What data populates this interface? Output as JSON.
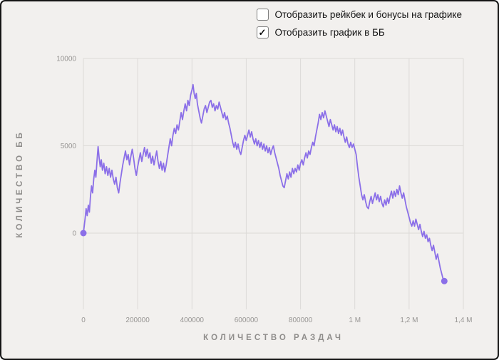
{
  "controls": {
    "rakeback_checkbox": {
      "label": "Отобразить рейкбек и бонусы на графике",
      "checked": false
    },
    "bb_checkbox": {
      "label": "Отобразить график в ББ",
      "checked": true
    }
  },
  "icons": {
    "checkmark": "✓"
  },
  "colors": {
    "accent_line": "#8b6fe8",
    "background": "#f2f0ee",
    "grid": "#dcdad7"
  },
  "chart_data": {
    "type": "line",
    "title": "",
    "xlabel": "КОЛИЧЕСТВО РАЗДАЧ",
    "ylabel": "КОЛИЧЕСТВО ББ",
    "xlim": [
      0,
      1400000
    ],
    "ylim": [
      -4370,
      10000
    ],
    "x_ticks": [
      0,
      200000,
      400000,
      600000,
      800000,
      1000000,
      1200000,
      1400000
    ],
    "x_tick_labels": [
      "0",
      "200000",
      "400000",
      "600000",
      "800000",
      "1 M",
      "1,2 M",
      "1,4 M"
    ],
    "y_ticks": [
      0,
      5000,
      10000
    ],
    "y_tick_labels": [
      "0",
      "5000",
      "10000"
    ],
    "grid": true,
    "legend": false,
    "line_color": "#8b6fe8",
    "series": [
      {
        "name": "Количество ББ",
        "points": [
          [
            0,
            0
          ],
          [
            6000,
            800
          ],
          [
            10000,
            1400
          ],
          [
            14000,
            1000
          ],
          [
            18000,
            1600
          ],
          [
            22000,
            1200
          ],
          [
            26000,
            2100
          ],
          [
            30000,
            2700
          ],
          [
            34000,
            2300
          ],
          [
            38000,
            3100
          ],
          [
            42000,
            3600
          ],
          [
            46000,
            3200
          ],
          [
            50000,
            4100
          ],
          [
            54000,
            4950
          ],
          [
            58000,
            4300
          ],
          [
            62000,
            3800
          ],
          [
            66000,
            4200
          ],
          [
            70000,
            3600
          ],
          [
            75000,
            4000
          ],
          [
            80000,
            3400
          ],
          [
            85000,
            3800
          ],
          [
            90000,
            3300
          ],
          [
            95000,
            3700
          ],
          [
            100000,
            3200
          ],
          [
            105000,
            3600
          ],
          [
            110000,
            3100
          ],
          [
            115000,
            2800
          ],
          [
            120000,
            3200
          ],
          [
            125000,
            2600
          ],
          [
            130000,
            2300
          ],
          [
            135000,
            2900
          ],
          [
            140000,
            3400
          ],
          [
            145000,
            3900
          ],
          [
            150000,
            4300
          ],
          [
            155000,
            4700
          ],
          [
            160000,
            4200
          ],
          [
            165000,
            4500
          ],
          [
            170000,
            3900
          ],
          [
            175000,
            4400
          ],
          [
            180000,
            4800
          ],
          [
            185000,
            4300
          ],
          [
            190000,
            3700
          ],
          [
            195000,
            3300
          ],
          [
            200000,
            3800
          ],
          [
            205000,
            4200
          ],
          [
            210000,
            4600
          ],
          [
            215000,
            4100
          ],
          [
            220000,
            4500
          ],
          [
            225000,
            4900
          ],
          [
            230000,
            4400
          ],
          [
            235000,
            4800
          ],
          [
            240000,
            4300
          ],
          [
            245000,
            4600
          ],
          [
            250000,
            4000
          ],
          [
            255000,
            4400
          ],
          [
            260000,
            3900
          ],
          [
            265000,
            4300
          ],
          [
            270000,
            4700
          ],
          [
            275000,
            4100
          ],
          [
            280000,
            3700
          ],
          [
            285000,
            4100
          ],
          [
            290000,
            3600
          ],
          [
            295000,
            4000
          ],
          [
            300000,
            3500
          ],
          [
            305000,
            3900
          ],
          [
            310000,
            4400
          ],
          [
            315000,
            4900
          ],
          [
            320000,
            5400
          ],
          [
            325000,
            5000
          ],
          [
            330000,
            5600
          ],
          [
            335000,
            6000
          ],
          [
            340000,
            5700
          ],
          [
            345000,
            6200
          ],
          [
            350000,
            5900
          ],
          [
            355000,
            6400
          ],
          [
            360000,
            6900
          ],
          [
            365000,
            6500
          ],
          [
            370000,
            7000
          ],
          [
            375000,
            7400
          ],
          [
            380000,
            7000
          ],
          [
            385000,
            7600
          ],
          [
            390000,
            7300
          ],
          [
            395000,
            7900
          ],
          [
            400000,
            8200
          ],
          [
            404000,
            8500
          ],
          [
            408000,
            8000
          ],
          [
            412000,
            7700
          ],
          [
            416000,
            8000
          ],
          [
            420000,
            7400
          ],
          [
            425000,
            7000
          ],
          [
            430000,
            6600
          ],
          [
            435000,
            6300
          ],
          [
            440000,
            6700
          ],
          [
            445000,
            7100
          ],
          [
            450000,
            7300
          ],
          [
            455000,
            6900
          ],
          [
            460000,
            7200
          ],
          [
            465000,
            7500
          ],
          [
            470000,
            7600
          ],
          [
            475000,
            7200
          ],
          [
            480000,
            7400
          ],
          [
            485000,
            7000
          ],
          [
            490000,
            7300
          ],
          [
            495000,
            7100
          ],
          [
            500000,
            7500
          ],
          [
            505000,
            7200
          ],
          [
            510000,
            6900
          ],
          [
            515000,
            6600
          ],
          [
            520000,
            6900
          ],
          [
            525000,
            6500
          ],
          [
            530000,
            6700
          ],
          [
            535000,
            6300
          ],
          [
            540000,
            6000
          ],
          [
            545000,
            5600
          ],
          [
            550000,
            5200
          ],
          [
            555000,
            4900
          ],
          [
            560000,
            5200
          ],
          [
            565000,
            4800
          ],
          [
            570000,
            5100
          ],
          [
            575000,
            4700
          ],
          [
            580000,
            4500
          ],
          [
            585000,
            4900
          ],
          [
            590000,
            5300
          ],
          [
            595000,
            5600
          ],
          [
            600000,
            5300
          ],
          [
            605000,
            5600
          ],
          [
            610000,
            5900
          ],
          [
            615000,
            5500
          ],
          [
            620000,
            5800
          ],
          [
            625000,
            5400
          ],
          [
            630000,
            5100
          ],
          [
            635000,
            5400
          ],
          [
            640000,
            5000
          ],
          [
            645000,
            5300
          ],
          [
            650000,
            4900
          ],
          [
            655000,
            5200
          ],
          [
            660000,
            4800
          ],
          [
            665000,
            5100
          ],
          [
            670000,
            4700
          ],
          [
            675000,
            5000
          ],
          [
            680000,
            4600
          ],
          [
            685000,
            4900
          ],
          [
            690000,
            4500
          ],
          [
            695000,
            4800
          ],
          [
            700000,
            5000
          ],
          [
            705000,
            4600
          ],
          [
            710000,
            4300
          ],
          [
            715000,
            4000
          ],
          [
            720000,
            3700
          ],
          [
            725000,
            3300
          ],
          [
            730000,
            3000
          ],
          [
            735000,
            2700
          ],
          [
            740000,
            2600
          ],
          [
            745000,
            3000
          ],
          [
            750000,
            3400
          ],
          [
            755000,
            3100
          ],
          [
            760000,
            3500
          ],
          [
            765000,
            3200
          ],
          [
            770000,
            3700
          ],
          [
            775000,
            3400
          ],
          [
            780000,
            3700
          ],
          [
            785000,
            3500
          ],
          [
            790000,
            3900
          ],
          [
            795000,
            3600
          ],
          [
            800000,
            4000
          ],
          [
            805000,
            4200
          ],
          [
            810000,
            3900
          ],
          [
            815000,
            4300
          ],
          [
            820000,
            4600
          ],
          [
            825000,
            4300
          ],
          [
            830000,
            4700
          ],
          [
            835000,
            4500
          ],
          [
            840000,
            4900
          ],
          [
            845000,
            5200
          ],
          [
            850000,
            5000
          ],
          [
            855000,
            5500
          ],
          [
            860000,
            5900
          ],
          [
            865000,
            6300
          ],
          [
            870000,
            6800
          ],
          [
            875000,
            6500
          ],
          [
            880000,
            6900
          ],
          [
            885000,
            6600
          ],
          [
            890000,
            7000
          ],
          [
            895000,
            6700
          ],
          [
            900000,
            6400
          ],
          [
            905000,
            6100
          ],
          [
            910000,
            6500
          ],
          [
            915000,
            6200
          ],
          [
            920000,
            5900
          ],
          [
            925000,
            6200
          ],
          [
            930000,
            5800
          ],
          [
            935000,
            6100
          ],
          [
            940000,
            5700
          ],
          [
            945000,
            6000
          ],
          [
            950000,
            5600
          ],
          [
            955000,
            5900
          ],
          [
            960000,
            5500
          ],
          [
            965000,
            5200
          ],
          [
            970000,
            5500
          ],
          [
            975000,
            5100
          ],
          [
            980000,
            4900
          ],
          [
            985000,
            5200
          ],
          [
            990000,
            4900
          ],
          [
            995000,
            5100
          ],
          [
            1000000,
            4800
          ],
          [
            1005000,
            4500
          ],
          [
            1010000,
            3800
          ],
          [
            1015000,
            3200
          ],
          [
            1020000,
            2700
          ],
          [
            1025000,
            2200
          ],
          [
            1030000,
            1900
          ],
          [
            1035000,
            2200
          ],
          [
            1040000,
            1800
          ],
          [
            1045000,
            1500
          ],
          [
            1050000,
            1400
          ],
          [
            1055000,
            1800
          ],
          [
            1060000,
            2100
          ],
          [
            1065000,
            1700
          ],
          [
            1070000,
            2000
          ],
          [
            1075000,
            2300
          ],
          [
            1080000,
            1900
          ],
          [
            1085000,
            2200
          ],
          [
            1090000,
            1800
          ],
          [
            1095000,
            2100
          ],
          [
            1100000,
            1700
          ],
          [
            1105000,
            1500
          ],
          [
            1110000,
            1900
          ],
          [
            1115000,
            1600
          ],
          [
            1120000,
            2000
          ],
          [
            1125000,
            1700
          ],
          [
            1130000,
            2100
          ],
          [
            1135000,
            2400
          ],
          [
            1140000,
            2000
          ],
          [
            1145000,
            2400
          ],
          [
            1150000,
            2100
          ],
          [
            1155000,
            2500
          ],
          [
            1160000,
            2200
          ],
          [
            1165000,
            2700
          ],
          [
            1170000,
            2300
          ],
          [
            1175000,
            2000
          ],
          [
            1180000,
            2300
          ],
          [
            1185000,
            1900
          ],
          [
            1190000,
            1500
          ],
          [
            1195000,
            1200
          ],
          [
            1200000,
            900
          ],
          [
            1205000,
            600
          ],
          [
            1210000,
            400
          ],
          [
            1215000,
            700
          ],
          [
            1220000,
            400
          ],
          [
            1225000,
            800
          ],
          [
            1230000,
            500
          ],
          [
            1235000,
            200
          ],
          [
            1240000,
            500
          ],
          [
            1245000,
            100
          ],
          [
            1250000,
            -200
          ],
          [
            1255000,
            100
          ],
          [
            1260000,
            -300
          ],
          [
            1265000,
            -100
          ],
          [
            1270000,
            -500
          ],
          [
            1275000,
            -300
          ],
          [
            1280000,
            -700
          ],
          [
            1285000,
            -1000
          ],
          [
            1290000,
            -700
          ],
          [
            1295000,
            -1100
          ],
          [
            1300000,
            -1500
          ],
          [
            1305000,
            -1200
          ],
          [
            1310000,
            -1600
          ],
          [
            1315000,
            -2000
          ],
          [
            1320000,
            -2300
          ],
          [
            1325000,
            -2600
          ],
          [
            1330000,
            -2750
          ]
        ]
      }
    ]
  }
}
